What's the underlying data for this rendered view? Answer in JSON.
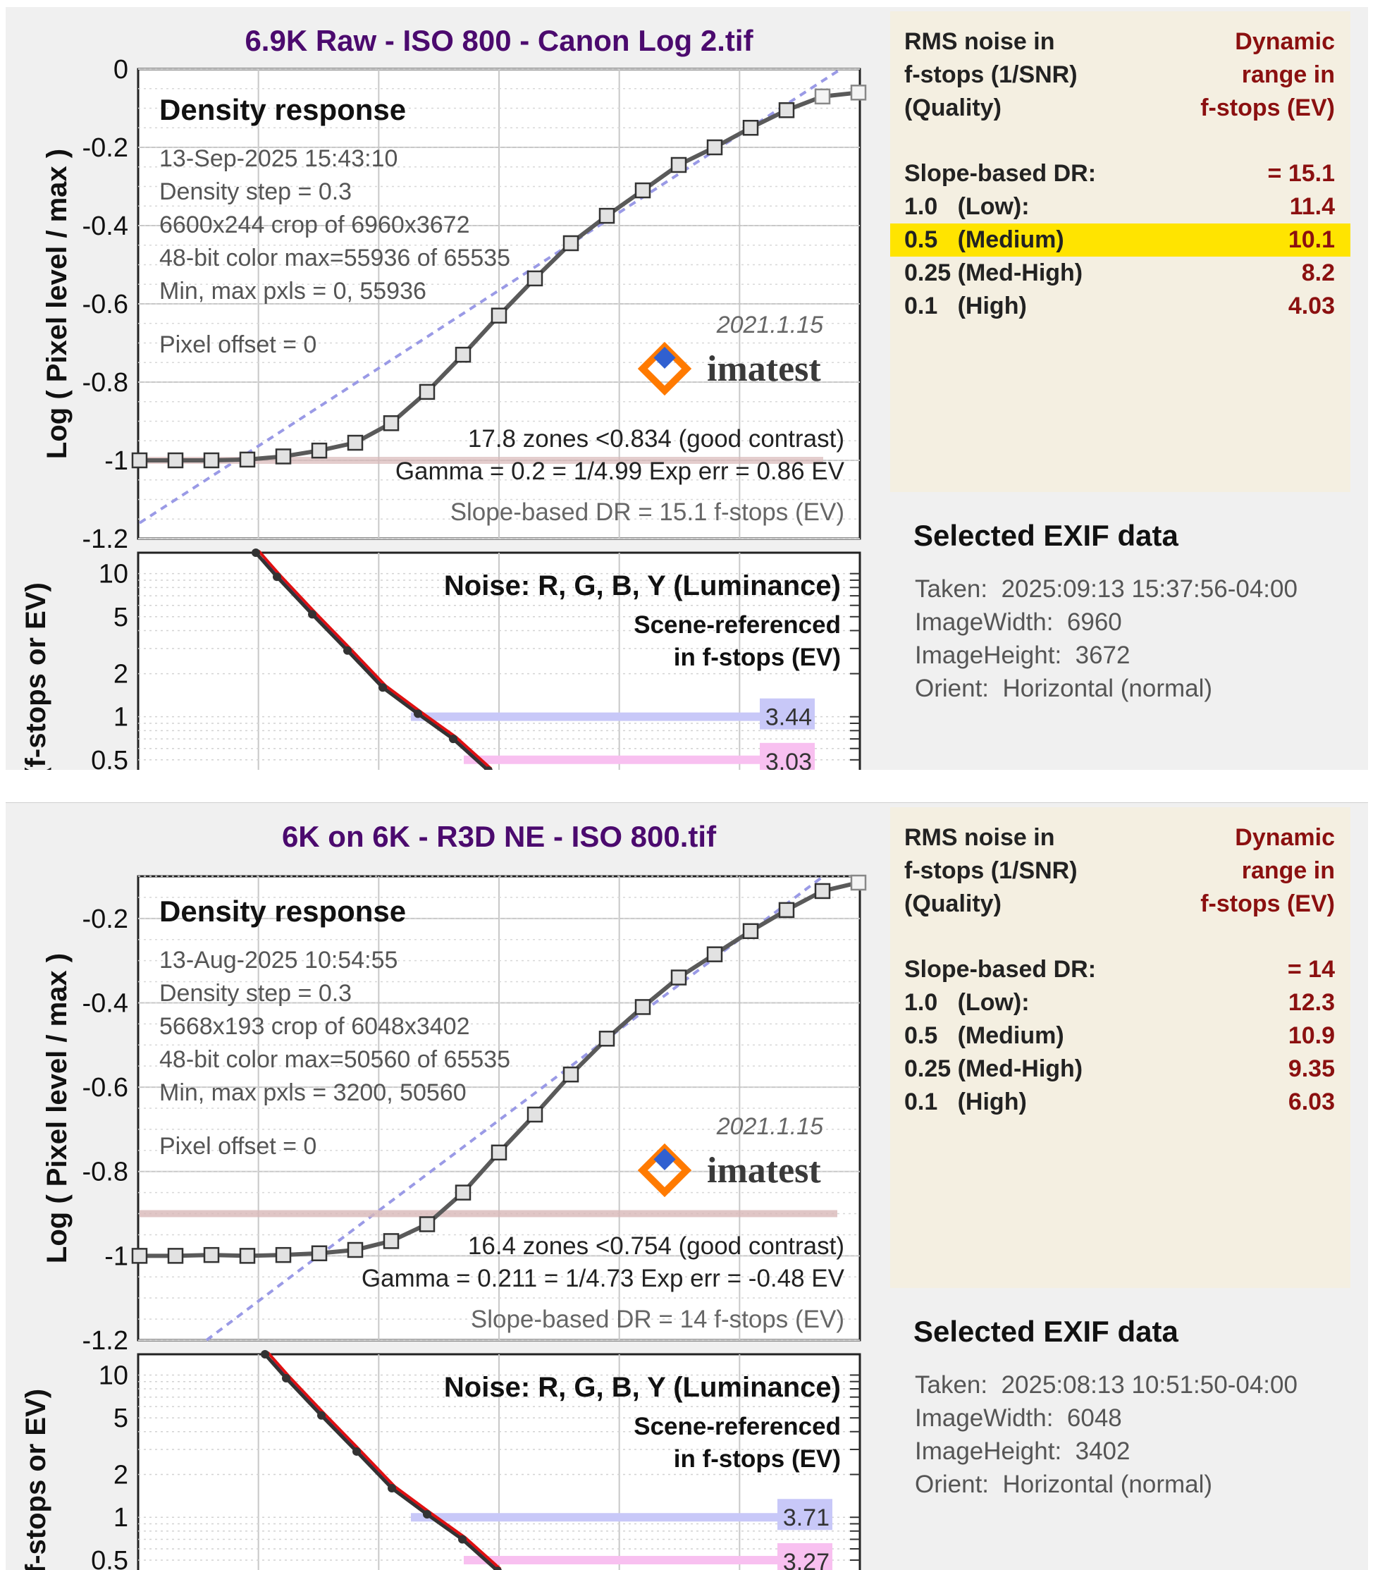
{
  "panels": [
    {
      "title": "6.9K Raw - ISO 800 - Canon Log 2.tif",
      "density": {
        "heading": "Density response",
        "info_lines": [
          "13-Sep-2025 15:43:10",
          "Density step = 0.3",
          "6600x244  crop of 6960x3672",
          "48-bit color  max=55936 of 65535",
          "Min, max pxls = 0, 55936"
        ],
        "pixel_offset": "Pixel offset = 0",
        "version": "2021.1.15",
        "logo": "imatest",
        "stats": [
          "17.8 zones <0.834 (good contrast)",
          "Gamma = 0.2 = 1/4.99  Exp err = 0.86 EV",
          "Slope-based DR = 15.1 f-stops (EV)"
        ],
        "ylabel": "Log ( Pixel level / max )"
      },
      "noise": {
        "heading": "Noise: R, G, B, Y (Luminance)",
        "sub1": "Scene-referenced",
        "sub2": "in f-stops (EV)",
        "ylabel": "(f-stops or EV)",
        "marker1": "3.44",
        "marker2": "3.03"
      },
      "dr": {
        "left_header": [
          "RMS noise in",
          "f-stops (1/SNR)",
          "(Quality)"
        ],
        "right_header": [
          "Dynamic",
          "range in",
          "f-stops (EV)"
        ],
        "rows": [
          {
            "key": "Slope-based DR:",
            "value": "= 15.1",
            "highlight": false
          },
          {
            "key": "1.0   (Low):",
            "value": "11.4",
            "highlight": false
          },
          {
            "key": "0.5   (Medium)",
            "value": "10.1",
            "highlight": true
          },
          {
            "key": "0.25 (Med-High)",
            "value": "8.2",
            "highlight": false
          },
          {
            "key": "0.1   (High)",
            "value": "4.03",
            "highlight": false
          }
        ]
      },
      "exif": {
        "title": "Selected EXIF data",
        "lines": [
          "Taken:  2025:09:13 15:37:56-04:00",
          "ImageWidth:  6960",
          "ImageHeight:  3672",
          "Orient:  Horizontal (normal)"
        ]
      }
    },
    {
      "title": "6K on 6K - R3D NE - ISO 800.tif",
      "density": {
        "heading": "Density response",
        "info_lines": [
          "13-Aug-2025 10:54:55",
          "Density step = 0.3",
          "5668x193  crop of 6048x3402",
          "48-bit color  max=50560 of 65535",
          "Min, max pxls = 3200, 50560"
        ],
        "pixel_offset": "Pixel offset = 0",
        "version": "2021.1.15",
        "logo": "imatest",
        "stats": [
          "16.4 zones <0.754 (good contrast)",
          "Gamma = 0.211 = 1/4.73  Exp err = -0.48 EV",
          "Slope-based DR = 14 f-stops (EV)"
        ],
        "ylabel": "Log ( Pixel level / max )"
      },
      "noise": {
        "heading": "Noise: R, G, B, Y (Luminance)",
        "sub1": "Scene-referenced",
        "sub2": "in f-stops (EV)",
        "ylabel": "f-stops or EV)",
        "marker1": "3.71",
        "marker2": "3.27"
      },
      "dr": {
        "left_header": [
          "RMS noise in",
          "f-stops (1/SNR)",
          "(Quality)"
        ],
        "right_header": [
          "Dynamic",
          "range in",
          "f-stops (EV)"
        ],
        "rows": [
          {
            "key": "Slope-based DR:",
            "value": "= 14",
            "highlight": false
          },
          {
            "key": "1.0   (Low):",
            "value": "12.3",
            "highlight": false
          },
          {
            "key": "0.5   (Medium)",
            "value": "10.9",
            "highlight": false
          },
          {
            "key": "0.25 (Med-High)",
            "value": "9.35",
            "highlight": false
          },
          {
            "key": "0.1   (High)",
            "value": "6.03",
            "highlight": false
          }
        ]
      },
      "exif": {
        "title": "Selected EXIF data",
        "lines": [
          "Taken:  2025:08:13 10:51:50-04:00",
          "ImageWidth:  6048",
          "ImageHeight:  3402",
          "Orient:  Horizontal (normal)"
        ]
      }
    }
  ],
  "colors": {
    "title": "#4b0a6e",
    "curve": "#5a5a5a",
    "dashed": "#9a9ae6",
    "red": "#e01010",
    "blue": "#2040ff",
    "marker1": "#c8c8f8",
    "marker2": "#f8c0f0",
    "limit_band": "#d8b8b8"
  },
  "chart_data": [
    {
      "type": "line",
      "title": "6.9K Raw - ISO 800 - Canon Log 2.tif",
      "ylabel": "Log ( Pixel level / max )",
      "ylim": [
        -1.2,
        0
      ],
      "yticks": [
        0,
        -0.2,
        -0.4,
        -0.6,
        -0.8,
        -1,
        -1.2
      ],
      "yticklabels": [
        "0",
        "-0.2",
        "-0.4",
        "-0.6",
        "-0.8",
        "-1",
        "-1.2"
      ],
      "grid": true,
      "series": [
        {
          "values": [
            -1.0,
            -1.0,
            -1.0,
            -0.998,
            -0.99,
            -0.975,
            -0.955,
            -0.905,
            -0.825,
            -0.73,
            -0.63,
            -0.535,
            -0.445,
            -0.375,
            -0.31,
            -0.245,
            -0.2,
            -0.15,
            -0.105,
            -0.07,
            -0.06
          ]
        }
      ],
      "noise": {
        "ylabel": "(f-stops or EV)",
        "yticks": [
          10,
          5,
          2,
          1,
          0.5
        ],
        "yticklabels": [
          "10",
          "5",
          "2",
          "1",
          "0.5"
        ],
        "markers": [
          3.44,
          3.03
        ]
      }
    },
    {
      "type": "line",
      "title": "6K on 6K - R3D NE - ISO 800.tif",
      "ylabel": "Log ( Pixel level / max )",
      "ylim": [
        -1.2,
        -0.1
      ],
      "yticks": [
        -0.2,
        -0.4,
        -0.6,
        -0.8,
        -1,
        -1.2
      ],
      "yticklabels": [
        "-0.2",
        "-0.4",
        "-0.6",
        "-0.8",
        "-1",
        "-1.2"
      ],
      "grid": true,
      "series": [
        {
          "values": [
            -1.0,
            -1.0,
            -0.998,
            -1.0,
            -0.998,
            -0.994,
            -0.986,
            -0.965,
            -0.925,
            -0.85,
            -0.755,
            -0.665,
            -0.57,
            -0.485,
            -0.41,
            -0.34,
            -0.285,
            -0.23,
            -0.18,
            -0.135,
            -0.115
          ]
        }
      ],
      "noise": {
        "ylabel": "f-stops or EV)",
        "yticks": [
          10,
          5,
          2,
          1,
          0.5
        ],
        "yticklabels": [
          "10",
          "5",
          "2",
          "1",
          "0.5"
        ],
        "markers": [
          3.71,
          3.27
        ]
      }
    }
  ]
}
